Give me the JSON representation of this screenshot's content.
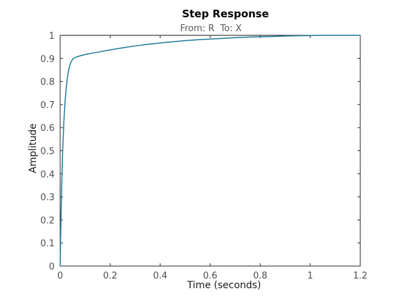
{
  "chart_data": {
    "type": "line",
    "title": "Step Response",
    "subtitle": "From: R  To: X",
    "xlabel": "Time (seconds)",
    "ylabel": "Amplitude",
    "xlim": [
      0,
      1.2
    ],
    "ylim": [
      0,
      1
    ],
    "xticks": [
      "0",
      "0.2",
      "0.4",
      "0.6",
      "0.8",
      "1",
      "1.2"
    ],
    "yticks": [
      "0",
      "0.1",
      "0.2",
      "0.3",
      "0.4",
      "0.5",
      "0.6",
      "0.7",
      "0.8",
      "0.9",
      "1"
    ],
    "grid": false,
    "steady_state_value": 1,
    "series": [
      {
        "color": "#1a7a9a",
        "x": [
          0,
          0.002,
          0.005,
          0.01,
          0.015,
          0.02,
          0.025,
          0.03,
          0.035,
          0.04,
          0.045,
          0.05,
          0.055,
          0.06,
          0.065,
          0.07,
          0.08,
          0.09,
          0.1,
          0.12,
          0.15,
          0.2,
          0.25,
          0.3,
          0.35,
          0.4,
          0.45,
          0.5,
          0.55,
          0.6,
          0.65,
          0.7,
          0.75,
          0.8,
          0.85,
          0.9,
          0.95,
          1.0,
          1.02,
          1.06
        ],
        "y": [
          0.0,
          0.13,
          0.3,
          0.5,
          0.63,
          0.72,
          0.78,
          0.825,
          0.855,
          0.875,
          0.888,
          0.896,
          0.901,
          0.904,
          0.906,
          0.908,
          0.911,
          0.914,
          0.917,
          0.921,
          0.927,
          0.937,
          0.946,
          0.954,
          0.961,
          0.967,
          0.972,
          0.977,
          0.981,
          0.984,
          0.987,
          0.99,
          0.992,
          0.994,
          0.995,
          0.997,
          0.998,
          0.999,
          0.9995,
          1.0
        ]
      }
    ]
  }
}
